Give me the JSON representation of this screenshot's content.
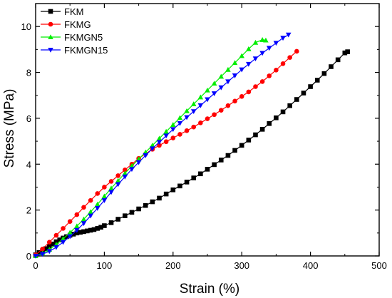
{
  "chart_data": {
    "type": "line",
    "xlabel": "Strain (%)",
    "ylabel": "Stress (MPa)",
    "xlim": [
      0,
      500
    ],
    "ylim": [
      0,
      11
    ],
    "x_ticks": [
      0,
      100,
      200,
      300,
      400,
      500
    ],
    "y_ticks": [
      0,
      2,
      4,
      6,
      8,
      10
    ],
    "grid": false,
    "legend_position": "top-left",
    "series": [
      {
        "name": "FKM",
        "color": "#000000",
        "marker": "square",
        "x": [
          0,
          5,
          10,
          15,
          20,
          25,
          30,
          35,
          40,
          45,
          50,
          55,
          60,
          65,
          70,
          75,
          80,
          85,
          90,
          95,
          100,
          110,
          120,
          130,
          140,
          150,
          160,
          170,
          180,
          190,
          200,
          210,
          220,
          230,
          240,
          250,
          260,
          270,
          280,
          290,
          300,
          310,
          320,
          330,
          340,
          350,
          360,
          370,
          380,
          390,
          400,
          410,
          420,
          430,
          440,
          450,
          454
        ],
        "y": [
          0.05,
          0.15,
          0.23,
          0.32,
          0.42,
          0.52,
          0.62,
          0.7,
          0.78,
          0.84,
          0.9,
          0.95,
          1.0,
          1.03,
          1.06,
          1.09,
          1.12,
          1.15,
          1.2,
          1.25,
          1.32,
          1.45,
          1.6,
          1.75,
          1.9,
          2.05,
          2.2,
          2.36,
          2.52,
          2.7,
          2.88,
          3.05,
          3.22,
          3.4,
          3.58,
          3.78,
          3.98,
          4.18,
          4.38,
          4.6,
          4.82,
          5.05,
          5.28,
          5.52,
          5.77,
          6.02,
          6.28,
          6.55,
          6.82,
          7.1,
          7.38,
          7.66,
          7.95,
          8.25,
          8.55,
          8.85,
          8.9
        ]
      },
      {
        "name": "FKMG",
        "color": "#ff0000",
        "marker": "circle",
        "x": [
          0,
          10,
          20,
          30,
          40,
          50,
          60,
          70,
          80,
          90,
          100,
          110,
          120,
          130,
          140,
          150,
          160,
          170,
          180,
          190,
          200,
          210,
          220,
          230,
          240,
          250,
          260,
          270,
          280,
          290,
          300,
          310,
          320,
          330,
          340,
          350,
          360,
          370,
          380
        ],
        "y": [
          0.05,
          0.3,
          0.6,
          0.9,
          1.2,
          1.5,
          1.8,
          2.12,
          2.42,
          2.72,
          3.0,
          3.25,
          3.5,
          3.75,
          4.0,
          4.25,
          4.45,
          4.65,
          4.82,
          4.98,
          5.14,
          5.3,
          5.46,
          5.62,
          5.8,
          5.98,
          6.16,
          6.35,
          6.55,
          6.75,
          6.95,
          7.15,
          7.38,
          7.6,
          7.85,
          8.1,
          8.38,
          8.65,
          8.92
        ]
      },
      {
        "name": "FKMGN5",
        "color": "#00ee00",
        "marker": "triangle-up",
        "x": [
          0,
          10,
          20,
          30,
          40,
          50,
          60,
          70,
          80,
          90,
          100,
          110,
          120,
          130,
          140,
          150,
          160,
          170,
          180,
          190,
          200,
          210,
          220,
          230,
          240,
          250,
          260,
          270,
          280,
          290,
          300,
          310,
          320,
          330,
          335
        ],
        "y": [
          0.0,
          0.12,
          0.28,
          0.5,
          0.75,
          1.02,
          1.3,
          1.6,
          1.92,
          2.25,
          2.6,
          2.95,
          3.28,
          3.6,
          3.92,
          4.22,
          4.52,
          4.82,
          5.12,
          5.42,
          5.72,
          6.02,
          6.32,
          6.62,
          6.92,
          7.22,
          7.52,
          7.82,
          8.12,
          8.42,
          8.72,
          9.02,
          9.3,
          9.42,
          9.4
        ]
      },
      {
        "name": "FKMGN15",
        "color": "#0000ff",
        "marker": "triangle-down",
        "x": [
          0,
          10,
          20,
          30,
          40,
          50,
          60,
          70,
          80,
          90,
          100,
          110,
          120,
          130,
          140,
          150,
          160,
          170,
          180,
          190,
          200,
          210,
          220,
          230,
          240,
          250,
          260,
          270,
          280,
          290,
          300,
          310,
          320,
          330,
          340,
          350,
          360,
          368
        ],
        "y": [
          0.0,
          0.08,
          0.2,
          0.38,
          0.6,
          0.85,
          1.12,
          1.42,
          1.75,
          2.08,
          2.42,
          2.78,
          3.12,
          3.45,
          3.78,
          4.08,
          4.38,
          4.68,
          4.96,
          5.24,
          5.52,
          5.78,
          6.04,
          6.3,
          6.56,
          6.82,
          7.08,
          7.34,
          7.6,
          7.86,
          8.12,
          8.36,
          8.6,
          8.84,
          9.06,
          9.28,
          9.5,
          9.64
        ]
      }
    ]
  }
}
